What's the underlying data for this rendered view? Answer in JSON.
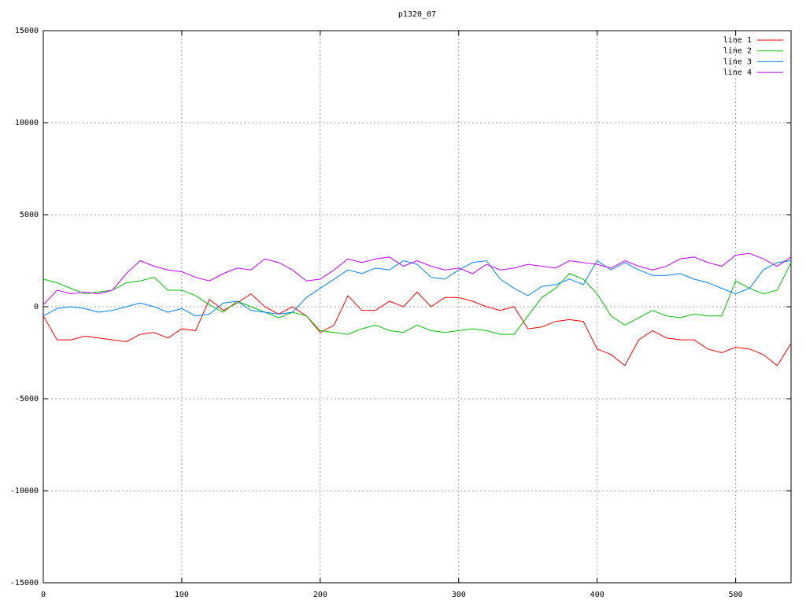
{
  "chart_data": {
    "type": "line",
    "title": "p1320_07",
    "x": [
      0,
      10,
      20,
      30,
      40,
      50,
      60,
      70,
      80,
      90,
      100,
      110,
      120,
      130,
      140,
      150,
      160,
      170,
      180,
      190,
      200,
      210,
      220,
      230,
      240,
      250,
      260,
      270,
      280,
      290,
      300,
      310,
      320,
      330,
      340,
      350,
      360,
      370,
      380,
      390,
      400,
      410,
      420,
      430,
      440,
      450,
      460,
      470,
      480,
      490,
      500,
      510,
      520,
      530,
      540
    ],
    "series": [
      {
        "name": "line 1",
        "color": "#ff0000",
        "values": [
          -500,
          -1800,
          -1800,
          -1600,
          -1700,
          -1800,
          -1900,
          -1500,
          -1400,
          -1700,
          -1200,
          -1300,
          400,
          -200,
          200,
          700,
          0,
          -400,
          0,
          -500,
          -1400,
          -1000,
          600,
          -200,
          -200,
          300,
          0,
          800,
          0,
          500,
          500,
          300,
          0,
          -200,
          0,
          -1200,
          -1100,
          -800,
          -700,
          -800,
          -2300,
          -2600,
          -3200,
          -1800,
          -1300,
          -1700,
          -1800,
          -1800,
          -2300,
          -2500,
          -2200,
          -2300,
          -2600,
          -3200,
          -2000
        ]
      },
      {
        "name": "line 2",
        "color": "#00c000",
        "values": [
          1500,
          1300,
          1000,
          700,
          800,
          900,
          1300,
          1400,
          1600,
          900,
          900,
          600,
          100,
          -300,
          300,
          0,
          -300,
          -600,
          -300,
          -500,
          -1300,
          -1400,
          -1500,
          -1200,
          -1000,
          -1300,
          -1400,
          -1000,
          -1300,
          -1400,
          -1300,
          -1200,
          -1300,
          -1500,
          -1500,
          -500,
          500,
          1000,
          1800,
          1500,
          700,
          -500,
          -1000,
          -600,
          -200,
          -500,
          -600,
          -400,
          -500,
          -500,
          1400,
          1000,
          700,
          900,
          2400
        ]
      },
      {
        "name": "line 3",
        "color": "#0080ff",
        "values": [
          -500,
          -100,
          0,
          -100,
          -300,
          -200,
          0,
          200,
          0,
          -300,
          -100,
          -500,
          -400,
          200,
          300,
          -200,
          -300,
          -400,
          -300,
          500,
          1000,
          1500,
          2000,
          1800,
          2100,
          2000,
          2500,
          2300,
          1600,
          1500,
          2000,
          2400,
          2500,
          1500,
          1000,
          600,
          1100,
          1200,
          1500,
          1200,
          2500,
          2000,
          2400,
          2000,
          1700,
          1700,
          1800,
          1500,
          1300,
          1000,
          700,
          1000,
          2000,
          2400,
          2500
        ]
      },
      {
        "name": "line 4",
        "color": "#c000ff",
        "values": [
          100,
          900,
          700,
          800,
          700,
          900,
          1800,
          2500,
          2200,
          2000,
          1900,
          1600,
          1400,
          1800,
          2100,
          2000,
          2600,
          2400,
          2000,
          1400,
          1500,
          2000,
          2600,
          2400,
          2600,
          2700,
          2200,
          2500,
          2200,
          2000,
          2100,
          1800,
          2300,
          2000,
          2100,
          2300,
          2200,
          2100,
          2500,
          2400,
          2300,
          2100,
          2500,
          2200,
          2000,
          2200,
          2600,
          2700,
          2400,
          2200,
          2800,
          2900,
          2600,
          2200,
          2700
        ]
      }
    ],
    "xlim": [
      0,
      540
    ],
    "xticks": [
      0,
      100,
      200,
      300,
      400,
      500
    ],
    "ylim": [
      -15000,
      15000
    ],
    "yticks": [
      -15000,
      -10000,
      -5000,
      0,
      5000,
      10000,
      15000
    ],
    "grid": true,
    "legend": "top-right"
  }
}
